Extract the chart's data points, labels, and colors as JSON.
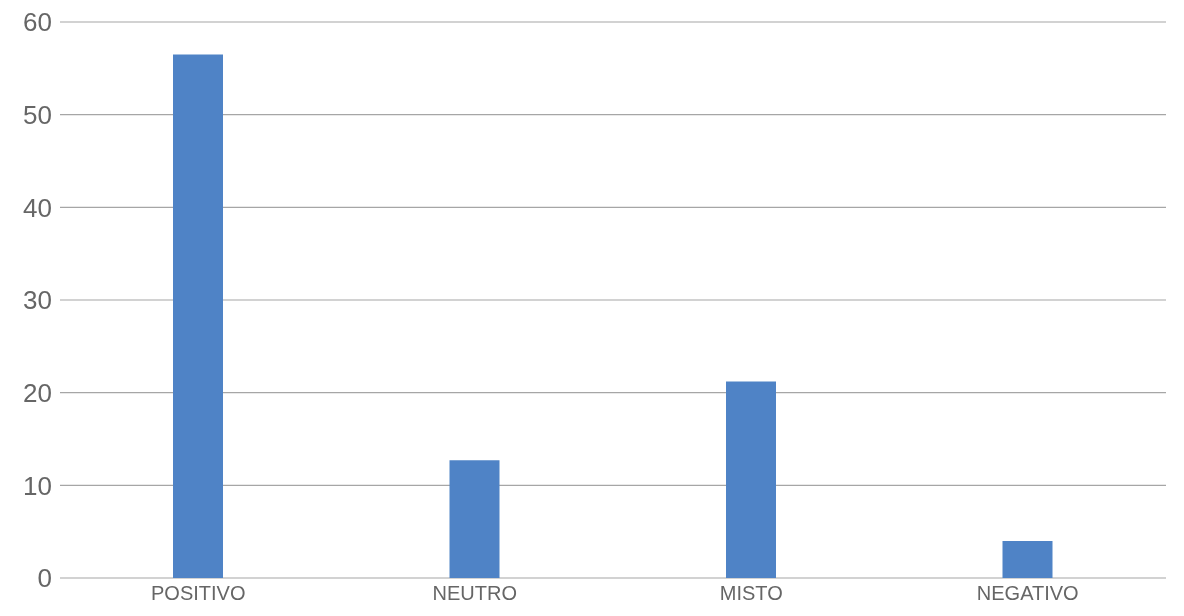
{
  "chart_data": {
    "type": "bar",
    "categories": [
      "POSITIVO",
      "NEUTRO",
      "MISTO",
      "NEGATIVO"
    ],
    "values": [
      56.5,
      12.7,
      21.2,
      4
    ],
    "color": "#4f83c6",
    "ylim": [
      0,
      60
    ],
    "yticks": [
      0,
      10,
      20,
      30,
      40,
      50,
      60
    ],
    "grid": "y"
  }
}
